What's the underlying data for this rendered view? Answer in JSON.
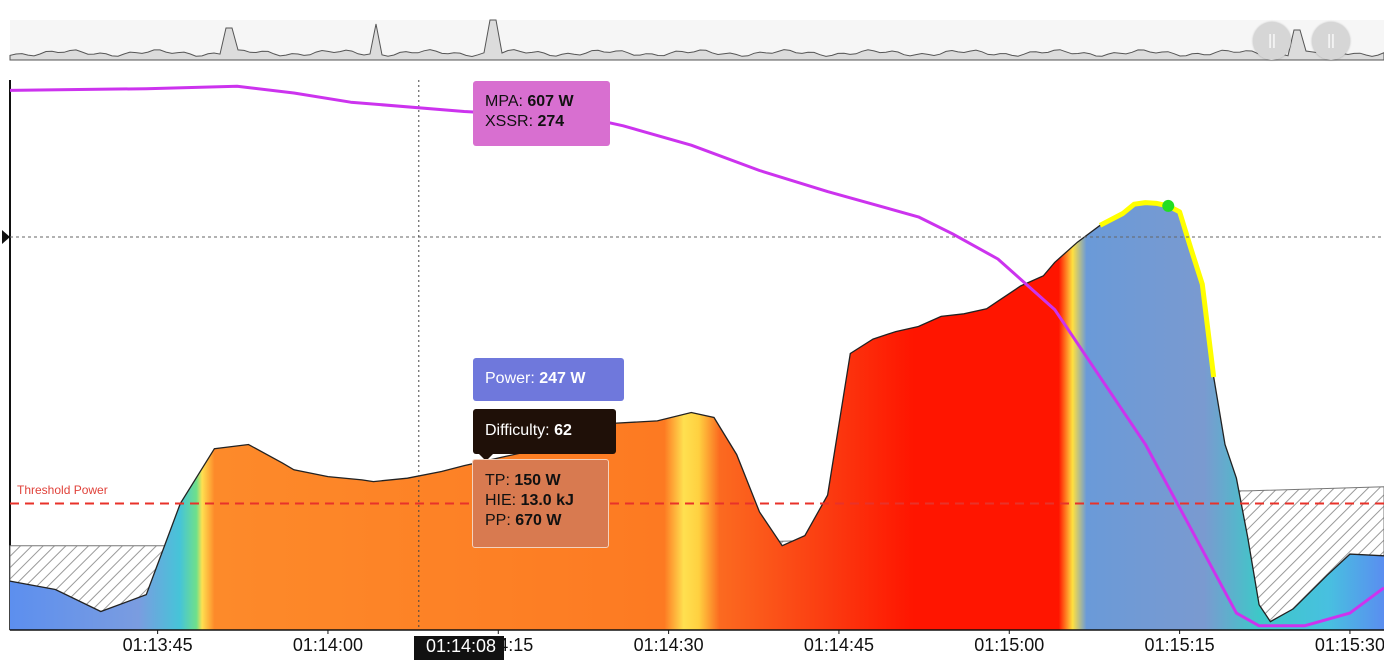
{
  "chart_data": {
    "type": "area",
    "x_unit": "time",
    "x_range": [
      "01:13:32",
      "01:15:33"
    ],
    "x_ticks": [
      "01:13:45",
      "01:14:00",
      "01:14:15",
      "01:14:30",
      "01:14:45",
      "01:15:00",
      "01:15:15",
      "01:15:30"
    ],
    "threshold_label": "Threshold Power",
    "threshold_power_w": 150,
    "cursor_time": "01:14:08",
    "series": [
      {
        "name": "Power",
        "unit": "W",
        "x": [
          0,
          4,
          8,
          12,
          15,
          18,
          21,
          24,
          25,
          28,
          31,
          32,
          35,
          38,
          40,
          43,
          45,
          48,
          51,
          53,
          57,
          60,
          62,
          64,
          66,
          68,
          70,
          72,
          74,
          76,
          78,
          80,
          82,
          84,
          86,
          87,
          89,
          91,
          92,
          94,
          96,
          98,
          99,
          100,
          101,
          102,
          103,
          104,
          105,
          106,
          107,
          108,
          109,
          110,
          111,
          113,
          116,
          118,
          121
        ],
        "y": [
          58,
          48,
          22,
          42,
          150,
          215,
          220,
          198,
          190,
          182,
          178,
          176,
          180,
          188,
          195,
          204,
          210,
          215,
          247,
          245,
          248,
          258,
          252,
          208,
          140,
          100,
          112,
          160,
          328,
          345,
          354,
          360,
          372,
          375,
          381,
          390,
          408,
          420,
          436,
          460,
          480,
          494,
          505,
          507,
          506,
          503,
          496,
          452,
          410,
          300,
          220,
          180,
          110,
          30,
          10,
          25,
          65,
          90,
          88
        ]
      },
      {
        "name": "MPA",
        "unit": "W",
        "x": [
          0,
          12,
          20,
          25,
          30,
          40,
          51,
          54,
          60,
          66,
          72,
          80,
          83,
          87,
          92,
          96,
          100,
          104,
          108,
          110,
          114,
          118,
          121
        ],
        "y": [
          640,
          642,
          645,
          637,
          626,
          615,
          607,
          598,
          575,
          545,
          520,
          490,
          470,
          440,
          380,
          300,
          220,
          120,
          20,
          5,
          5,
          20,
          50
        ]
      },
      {
        "name": "Threshold band",
        "x": [
          0,
          53,
          70,
          108,
          109,
          121
        ],
        "y": [
          100,
          100,
          106,
          165,
          165,
          170
        ]
      }
    ],
    "highlight": {
      "color": "#ffff00",
      "marker_color": "#22dd22"
    },
    "colors": {
      "mpa": "#cc33ee",
      "threshold": "#e8322a",
      "power_high": "#ff1500",
      "power_mid": "#fd7a22",
      "power_low": "#5a8ef0"
    }
  },
  "tooltips": {
    "mpa": {
      "mpa_label": "MPA",
      "mpa_value": "607 W",
      "xssr_label": "XSSR",
      "xssr_value": "274"
    },
    "power": {
      "label": "Power",
      "value": "247 W"
    },
    "difficulty": {
      "label": "Difficulty",
      "value": "62"
    },
    "zones": {
      "tp_label": "TP",
      "tp_value": "150 W",
      "hie_label": "HIE",
      "hie_value": "13.0 kJ",
      "pp_label": "PP",
      "pp_value": "670 W"
    }
  },
  "overview": {
    "handle_icon": "pause-bars-icon",
    "handle_glyph": "||"
  }
}
